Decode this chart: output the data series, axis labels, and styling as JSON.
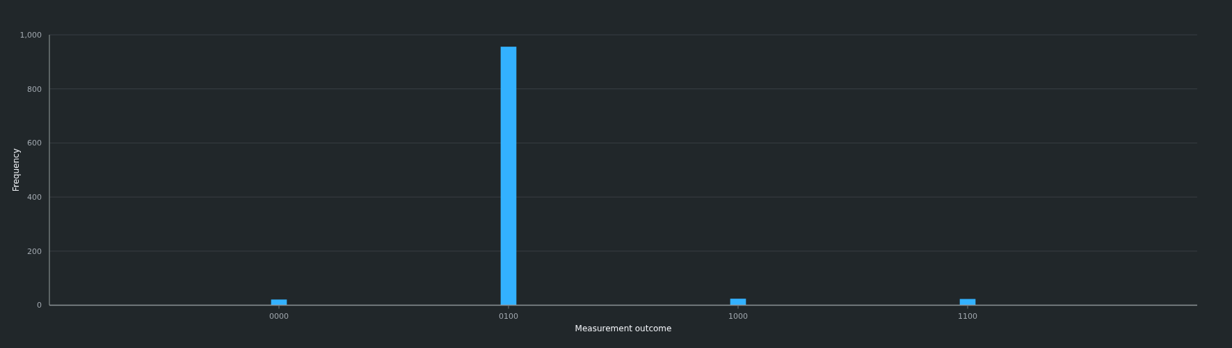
{
  "chart_data": {
    "type": "bar",
    "xlabel": "Measurement outcome",
    "ylabel": "Frequency",
    "categories": [
      "0000",
      "0100",
      "1000",
      "1100"
    ],
    "values": [
      21,
      956,
      24,
      23
    ],
    "color": "#33b1ff",
    "ylim": [
      0,
      1000
    ],
    "yticks": [
      0,
      200,
      400,
      600,
      800,
      {
        "value": 1000,
        "label": "1,000"
      }
    ],
    "grid": "y"
  }
}
